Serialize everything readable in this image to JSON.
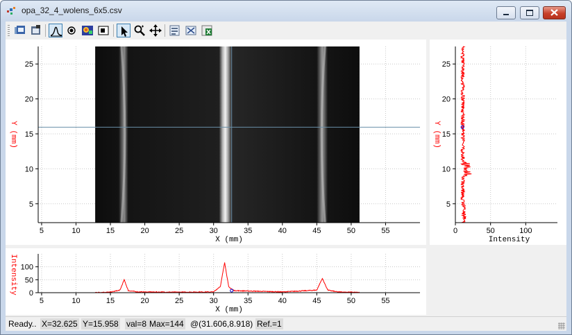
{
  "window": {
    "title": "opa_32_4_wolens_6x5.csv"
  },
  "toolbar": {
    "buttons": [
      {
        "name": "load-icon",
        "pressed": false
      },
      {
        "name": "settings-icon",
        "pressed": false
      },
      {
        "name": "profile-icon",
        "pressed": true
      },
      {
        "name": "point-icon",
        "pressed": false
      },
      {
        "name": "colormap-icon",
        "pressed": false
      },
      {
        "name": "window-icon",
        "pressed": false
      },
      {
        "name": "pointer-icon",
        "pressed": true
      },
      {
        "name": "zoom-icon",
        "pressed": false
      },
      {
        "name": "pan-icon",
        "pressed": false
      },
      {
        "name": "export-image-icon",
        "pressed": false
      },
      {
        "name": "export-data-icon",
        "pressed": false
      },
      {
        "name": "export-excel-icon",
        "pressed": false
      }
    ]
  },
  "main_plot": {
    "xlabel": "X (mm)",
    "ylabel": "Y (mm)",
    "xticks": [
      "5",
      "10",
      "15",
      "20",
      "25",
      "30",
      "35",
      "40",
      "45",
      "50",
      "55"
    ],
    "yticks": [
      "5",
      "10",
      "15",
      "20",
      "25"
    ],
    "xlim": [
      4.5,
      60
    ],
    "ylim": [
      2.3,
      27.5
    ],
    "image_extent": {
      "x": [
        12.8,
        51.2
      ]
    },
    "crosshair": {
      "x": 32.625,
      "y": 15.958
    },
    "bands_x": [
      17.0,
      31.6,
      45.8
    ]
  },
  "right_plot": {
    "xlabel": "Intensity",
    "ylabel": "Y (mm)",
    "xticks": [
      "0",
      "50",
      "100"
    ],
    "yticks": [
      "5",
      "10",
      "15",
      "20",
      "25"
    ],
    "xlim": [
      0,
      145
    ]
  },
  "bottom_plot": {
    "xlabel": "X (mm)",
    "ylabel": "Intensity",
    "xticks": [
      "5",
      "10",
      "15",
      "20",
      "25",
      "30",
      "35",
      "40",
      "45",
      "50",
      "55"
    ],
    "yticks": [
      "0",
      "50",
      "100"
    ],
    "ylim": [
      0,
      150
    ]
  },
  "chart_data": [
    {
      "type": "heatmap",
      "xlabel": "X (mm)",
      "ylabel": "Y (mm)",
      "xlim": [
        4.5,
        60
      ],
      "ylim": [
        2.3,
        27.5
      ],
      "colormap": "grayscale",
      "bright_bands_x": [
        17.0,
        31.6,
        45.8
      ],
      "crosshair": {
        "x": 32.625,
        "y": 15.958
      }
    },
    {
      "type": "line",
      "xlabel": "Intensity",
      "ylabel": "Y (mm)",
      "series": [
        {
          "name": "",
          "color": "#ff0000",
          "x_mean": 10
        }
      ],
      "xlim": [
        0,
        145
      ],
      "ylim": [
        2.3,
        27.5
      ]
    },
    {
      "type": "line",
      "xlabel": "X (mm)",
      "ylabel": "Intensity",
      "series": [
        {
          "name": "",
          "color": "#ff0000",
          "x": [
            12.8,
            15.0,
            16.4,
            17.0,
            17.6,
            19.0,
            25.0,
            30.0,
            31.0,
            31.6,
            32.2,
            33.0,
            40.0,
            45.0,
            45.8,
            46.6,
            48.0,
            51.2
          ],
          "y": [
            1,
            2,
            10,
            50,
            8,
            3,
            2,
            3,
            25,
            118,
            22,
            8,
            3,
            10,
            55,
            10,
            3,
            1
          ]
        }
      ],
      "xlim": [
        4.5,
        60
      ],
      "ylim": [
        0,
        150
      ]
    }
  ],
  "colors": {
    "axis_label": "#ff0000",
    "trace": "#ff0000",
    "crosshair": "#6a8fa8",
    "marker": "#0000cc"
  },
  "status": {
    "ready": "Ready..",
    "x": "X=32.625",
    "y": "Y=15.958",
    "val": "val=8",
    "max": "Max=144",
    "at": "@(31.606,8.918)",
    "ref": "Ref.=1"
  }
}
